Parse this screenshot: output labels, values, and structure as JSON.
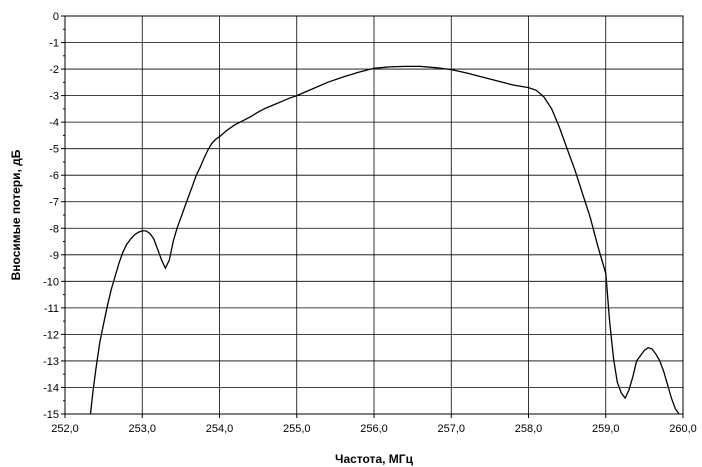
{
  "chart_data": {
    "type": "line",
    "title": "",
    "xlabel": "Частота, МГц",
    "ylabel": "Вносимые потери, дБ",
    "xlim": [
      252.0,
      260.0
    ],
    "ylim": [
      -15,
      0
    ],
    "grid": true,
    "legend": "none",
    "line_color": "#000000",
    "x_ticks": [
      {
        "value": 252.0,
        "label": "252,0"
      },
      {
        "value": 253.0,
        "label": "253,0"
      },
      {
        "value": 254.0,
        "label": "254,0"
      },
      {
        "value": 255.0,
        "label": "255,0"
      },
      {
        "value": 256.0,
        "label": "256,0"
      },
      {
        "value": 257.0,
        "label": "257,0"
      },
      {
        "value": 258.0,
        "label": "258,0"
      },
      {
        "value": 259.0,
        "label": "259,0"
      },
      {
        "value": 260.0,
        "label": "260,0"
      }
    ],
    "y_ticks": [
      {
        "value": 0,
        "label": "0"
      },
      {
        "value": -1,
        "label": "-1"
      },
      {
        "value": -2,
        "label": "-2"
      },
      {
        "value": -3,
        "label": "-3"
      },
      {
        "value": -4,
        "label": "-4"
      },
      {
        "value": -5,
        "label": "-5"
      },
      {
        "value": -6,
        "label": "-6"
      },
      {
        "value": -7,
        "label": "-7"
      },
      {
        "value": -8,
        "label": "-8"
      },
      {
        "value": -9,
        "label": "-9"
      },
      {
        "value": -10,
        "label": "-10"
      },
      {
        "value": -11,
        "label": "-11"
      },
      {
        "value": -12,
        "label": "-12"
      },
      {
        "value": -13,
        "label": "-13"
      },
      {
        "value": -14,
        "label": "-14"
      },
      {
        "value": -15,
        "label": "-15"
      }
    ],
    "series": [
      {
        "x": [
          252.33,
          252.36,
          252.4,
          252.45,
          252.5,
          252.55,
          252.6,
          252.65,
          252.7,
          252.75,
          252.8,
          252.85,
          252.9,
          252.95,
          253.0,
          253.05,
          253.1,
          253.15,
          253.2,
          253.25,
          253.3,
          253.35,
          253.4,
          253.45,
          253.5,
          253.55,
          253.6,
          253.65,
          253.7,
          253.75,
          253.8,
          253.85,
          253.9,
          253.95,
          254.0,
          254.1,
          254.2,
          254.3,
          254.4,
          254.5,
          254.6,
          254.7,
          254.8,
          254.9,
          255.0,
          255.2,
          255.4,
          255.6,
          255.8,
          256.0,
          256.2,
          256.4,
          256.6,
          256.8,
          257.0,
          257.2,
          257.4,
          257.6,
          257.8,
          258.0,
          258.1,
          258.2,
          258.3,
          258.4,
          258.5,
          258.6,
          258.7,
          258.8,
          258.9,
          259.0,
          259.05,
          259.1,
          259.15,
          259.2,
          259.25,
          259.3,
          259.35,
          259.4,
          259.45,
          259.5,
          259.55,
          259.6,
          259.65,
          259.7,
          259.75,
          259.8,
          259.85,
          259.9,
          259.95
        ],
        "y": [
          -15.0,
          -14.2,
          -13.3,
          -12.3,
          -11.6,
          -10.9,
          -10.3,
          -9.8,
          -9.3,
          -8.9,
          -8.6,
          -8.4,
          -8.25,
          -8.15,
          -8.1,
          -8.1,
          -8.2,
          -8.4,
          -8.8,
          -9.2,
          -9.5,
          -9.2,
          -8.5,
          -8.0,
          -7.6,
          -7.2,
          -6.8,
          -6.4,
          -6.0,
          -5.7,
          -5.35,
          -5.05,
          -4.8,
          -4.65,
          -4.55,
          -4.3,
          -4.1,
          -3.95,
          -3.8,
          -3.62,
          -3.47,
          -3.35,
          -3.23,
          -3.1,
          -3.0,
          -2.75,
          -2.5,
          -2.3,
          -2.12,
          -1.97,
          -1.92,
          -1.9,
          -1.9,
          -1.95,
          -2.02,
          -2.15,
          -2.3,
          -2.45,
          -2.6,
          -2.7,
          -2.8,
          -3.05,
          -3.5,
          -4.2,
          -5.0,
          -5.8,
          -6.7,
          -7.6,
          -8.7,
          -9.7,
          -11.5,
          -12.9,
          -13.8,
          -14.2,
          -14.4,
          -14.1,
          -13.6,
          -13.0,
          -12.8,
          -12.6,
          -12.5,
          -12.55,
          -12.75,
          -13.0,
          -13.4,
          -13.9,
          -14.4,
          -14.8,
          -15.0
        ]
      }
    ]
  }
}
